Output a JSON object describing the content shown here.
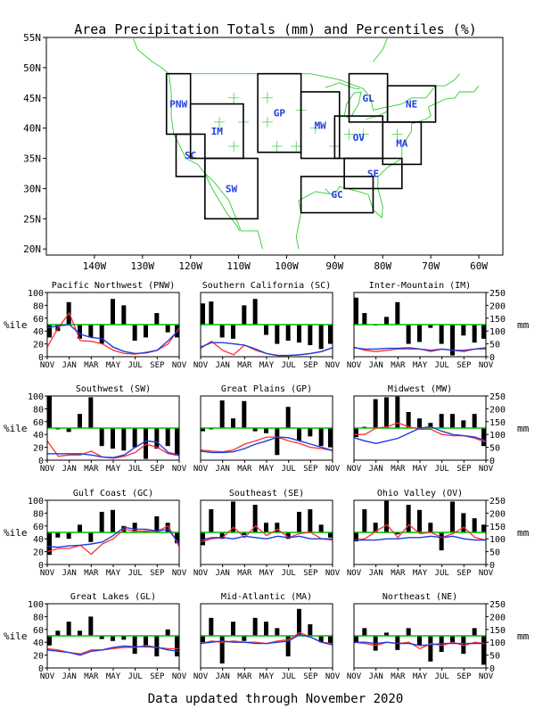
{
  "page": {
    "title": "Area Precipitation Totals (mm) and Percentiles (%)",
    "footer": "Data updated through November 2020"
  },
  "map": {
    "lat_labels": [
      "55N",
      "50N",
      "45N",
      "40N",
      "35N",
      "30N",
      "25N",
      "20N"
    ],
    "lon_labels": [
      "140W",
      "130W",
      "120W",
      "110W",
      "100W",
      "90W",
      "80W",
      "70W",
      "60W"
    ],
    "regions": [
      {
        "code": "PNW",
        "lon": [
          -125,
          -120
        ],
        "lat": [
          39,
          49
        ]
      },
      {
        "code": "SC",
        "lon": [
          -123,
          -117
        ],
        "lat": [
          32,
          39
        ]
      },
      {
        "code": "IM",
        "lon": [
          -120,
          -109
        ],
        "lat": [
          35,
          44
        ]
      },
      {
        "code": "SW",
        "lon": [
          -117,
          -106
        ],
        "lat": [
          25,
          35
        ]
      },
      {
        "code": "GP",
        "lon": [
          -106,
          -97
        ],
        "lat": [
          36,
          49
        ]
      },
      {
        "code": "MW",
        "lon": [
          -97,
          -89
        ],
        "lat": [
          35,
          46
        ]
      },
      {
        "code": "GL",
        "lon": [
          -87,
          -79
        ],
        "lat": [
          41,
          49
        ]
      },
      {
        "code": "NE",
        "lon": [
          -79,
          -69
        ],
        "lat": [
          41,
          47
        ]
      },
      {
        "code": "OV",
        "lon": [
          -90,
          -80
        ],
        "lat": [
          35,
          42
        ]
      },
      {
        "code": "MA",
        "lon": [
          -80,
          -72
        ],
        "lat": [
          34,
          41
        ]
      },
      {
        "code": "SE",
        "lon": [
          -88,
          -76
        ],
        "lat": [
          30,
          35
        ]
      },
      {
        "code": "GC",
        "lon": [
          -97,
          -82
        ],
        "lat": [
          26,
          32
        ]
      }
    ]
  },
  "axes": {
    "left_label": "%ile",
    "right_label": "mm",
    "pct_ticks": [
      "0",
      "20",
      "40",
      "60",
      "80",
      "100"
    ],
    "mm_ticks": [
      "0",
      "50",
      "100",
      "150",
      "200",
      "250"
    ],
    "month_ticks": [
      "NOV",
      "JAN",
      "MAR",
      "MAY",
      "JUL",
      "SEP",
      "NOV"
    ]
  },
  "legend": {
    "total_color": "#000000",
    "normal_color": "#00c000",
    "observed_color": "#ff3030",
    "mean_color": "#1e3cdc"
  },
  "chart_data": [
    {
      "type": "bar",
      "title": "Pacific Northwest (PNW)",
      "ylim": [
        0,
        100
      ],
      "y2lim": [
        0,
        250
      ],
      "threshold": 50,
      "percentiles": [
        30,
        40,
        85,
        28,
        30,
        20,
        90,
        80,
        25,
        30,
        68,
        38,
        30
      ],
      "observed": [
        15,
        45,
        68,
        25,
        24,
        20,
        10,
        5,
        4,
        7,
        10,
        20,
        45
      ],
      "mean": [
        45,
        48,
        50,
        35,
        30,
        28,
        15,
        8,
        5,
        6,
        10,
        25,
        42
      ]
    },
    {
      "type": "bar",
      "title": "Southern California (SC)",
      "ylim": [
        0,
        100
      ],
      "y2lim": [
        0,
        250
      ],
      "threshold": 50,
      "percentiles": [
        83,
        86,
        30,
        28,
        80,
        90,
        34,
        20,
        25,
        22,
        18,
        12,
        20
      ],
      "observed": [
        13,
        24,
        10,
        3,
        18,
        10,
        5,
        2,
        2,
        3,
        5,
        8,
        14
      ],
      "mean": [
        15,
        22,
        22,
        20,
        18,
        12,
        5,
        2,
        2,
        3,
        5,
        8,
        14
      ]
    },
    {
      "type": "bar",
      "title": "Inter-Mountain (IM)",
      "ylim": [
        0,
        100
      ],
      "y2lim": [
        0,
        250
      ],
      "threshold": 50,
      "percentiles": [
        92,
        68,
        49,
        62,
        85,
        20,
        23,
        45,
        20,
        2,
        33,
        22,
        28
      ],
      "observed": [
        15,
        10,
        8,
        10,
        12,
        12,
        12,
        8,
        12,
        10,
        8,
        12,
        12
      ],
      "mean": [
        14,
        12,
        12,
        13,
        13,
        14,
        12,
        10,
        12,
        10,
        10,
        12,
        14
      ]
    },
    {
      "type": "bar",
      "title": "Southwest (SW)",
      "ylim": [
        0,
        100
      ],
      "y2lim": [
        0,
        250
      ],
      "threshold": 50,
      "percentiles": [
        100,
        48,
        44,
        72,
        98,
        22,
        18,
        15,
        20,
        2,
        18,
        22,
        7
      ],
      "observed": [
        30,
        6,
        8,
        8,
        14,
        5,
        3,
        6,
        12,
        25,
        20,
        10,
        7
      ],
      "mean": [
        10,
        10,
        10,
        10,
        8,
        5,
        4,
        8,
        20,
        30,
        28,
        12,
        8
      ]
    },
    {
      "type": "bar",
      "title": "Great Plains (GP)",
      "ylim": [
        0,
        100
      ],
      "y2lim": [
        0,
        250
      ],
      "threshold": 50,
      "percentiles": [
        45,
        48,
        93,
        65,
        92,
        45,
        42,
        8,
        83,
        30,
        37,
        22,
        20
      ],
      "observed": [
        16,
        14,
        13,
        16,
        25,
        30,
        36,
        36,
        30,
        26,
        20,
        18,
        15
      ],
      "mean": [
        14,
        12,
        12,
        13,
        18,
        25,
        30,
        36,
        35,
        30,
        25,
        20,
        15
      ]
    },
    {
      "type": "bar",
      "title": "Midwest (MW)",
      "ylim": [
        0,
        100
      ],
      "y2lim": [
        0,
        250
      ],
      "threshold": 50,
      "percentiles": [
        36,
        52,
        95,
        98,
        99,
        75,
        65,
        58,
        72,
        72,
        62,
        72,
        22
      ],
      "observed": [
        40,
        40,
        50,
        52,
        58,
        52,
        48,
        48,
        40,
        38,
        38,
        34,
        28
      ],
      "mean": [
        35,
        30,
        26,
        30,
        34,
        42,
        50,
        52,
        45,
        40,
        38,
        36,
        30
      ]
    },
    {
      "type": "bar",
      "title": "Gulf Coast (GC)",
      "ylim": [
        0,
        100
      ],
      "y2lim": [
        0,
        250
      ],
      "threshold": 50,
      "percentiles": [
        15,
        42,
        40,
        62,
        35,
        82,
        85,
        60,
        65,
        53,
        75,
        65,
        33
      ],
      "observed": [
        20,
        25,
        25,
        30,
        16,
        32,
        40,
        55,
        52,
        52,
        52,
        60,
        28
      ],
      "mean": [
        28,
        27,
        29,
        30,
        32,
        35,
        45,
        58,
        55,
        55,
        52,
        55,
        32
      ]
    },
    {
      "type": "bar",
      "title": "Southeast (SE)",
      "ylim": [
        0,
        100
      ],
      "y2lim": [
        0,
        250
      ],
      "threshold": 50,
      "percentiles": [
        30,
        86,
        40,
        98,
        46,
        93,
        65,
        65,
        40,
        82,
        86,
        62,
        42
      ],
      "observed": [
        35,
        40,
        42,
        58,
        42,
        60,
        45,
        55,
        42,
        48,
        50,
        40,
        38
      ],
      "mean": [
        38,
        42,
        42,
        40,
        44,
        42,
        40,
        44,
        42,
        44,
        40,
        40,
        40
      ]
    },
    {
      "type": "bar",
      "title": "Ohio Valley (OV)",
      "ylim": [
        0,
        100
      ],
      "y2lim": [
        0,
        250
      ],
      "threshold": 50,
      "percentiles": [
        36,
        86,
        65,
        99,
        47,
        93,
        85,
        65,
        22,
        98,
        80,
        72,
        62
      ],
      "observed": [
        38,
        40,
        52,
        62,
        42,
        62,
        48,
        50,
        42,
        48,
        58,
        42,
        38
      ],
      "mean": [
        38,
        38,
        38,
        40,
        40,
        42,
        42,
        44,
        42,
        44,
        40,
        38,
        38
      ]
    },
    {
      "type": "bar",
      "title": "Great Lakes (GL)",
      "ylim": [
        0,
        100
      ],
      "y2lim": [
        0,
        250
      ],
      "threshold": 50,
      "percentiles": [
        35,
        58,
        72,
        58,
        80,
        45,
        42,
        44,
        22,
        32,
        18,
        60,
        18
      ],
      "observed": [
        30,
        28,
        24,
        22,
        28,
        28,
        30,
        32,
        32,
        35,
        32,
        30,
        30
      ],
      "mean": [
        28,
        26,
        24,
        20,
        26,
        28,
        32,
        34,
        33,
        33,
        32,
        28,
        26
      ]
    },
    {
      "type": "bar",
      "title": "Mid-Atlantic (MA)",
      "ylim": [
        0,
        100
      ],
      "y2lim": [
        0,
        250
      ],
      "threshold": 50,
      "percentiles": [
        40,
        78,
        7,
        72,
        42,
        78,
        72,
        62,
        18,
        92,
        68,
        40,
        38
      ],
      "observed": [
        38,
        42,
        40,
        42,
        40,
        40,
        38,
        42,
        44,
        55,
        48,
        40,
        38
      ],
      "mean": [
        38,
        40,
        42,
        40,
        40,
        38,
        38,
        40,
        42,
        52,
        48,
        40,
        36
      ]
    },
    {
      "type": "bar",
      "title": "Northeast (NE)",
      "ylim": [
        0,
        100
      ],
      "y2lim": [
        0,
        250
      ],
      "threshold": 50,
      "percentiles": [
        40,
        62,
        27,
        55,
        28,
        62,
        35,
        10,
        25,
        40,
        22,
        62,
        5
      ],
      "observed": [
        40,
        38,
        35,
        40,
        38,
        40,
        30,
        38,
        35,
        40,
        35,
        40,
        38
      ],
      "mean": [
        40,
        40,
        38,
        40,
        38,
        38,
        35,
        36,
        38,
        38,
        38,
        38,
        38
      ]
    }
  ]
}
